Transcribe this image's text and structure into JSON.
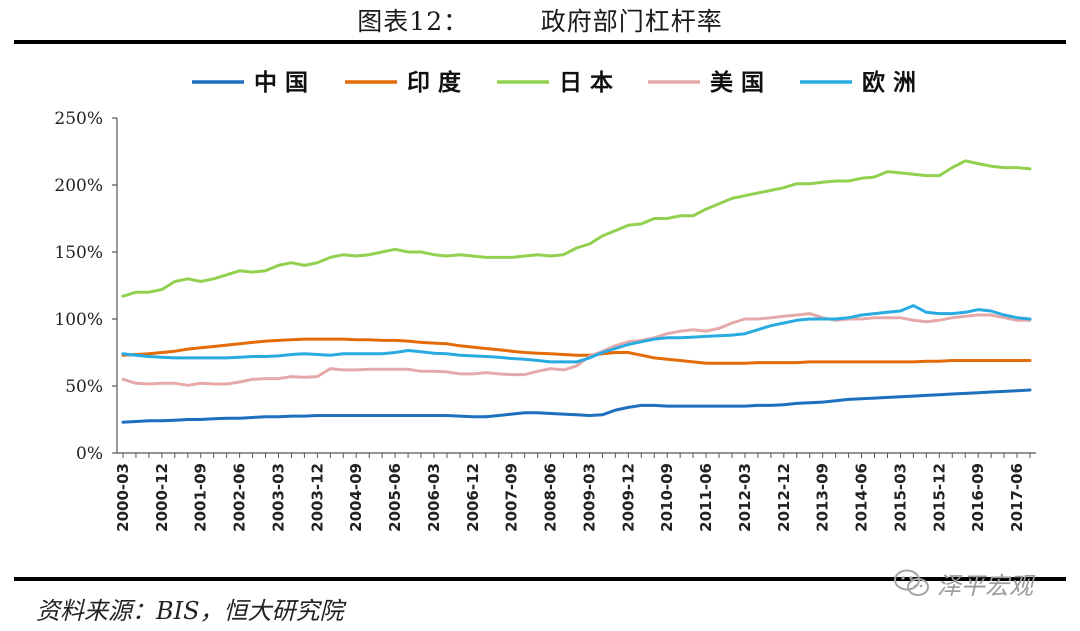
{
  "title_prefix": "图表12：",
  "title_text": "政府部门杠杆率",
  "source": "资料来源：BIS，恒大研究院",
  "watermark": {
    "text": "泽平宏观",
    "icon": "wechat-icon"
  },
  "chart_data": {
    "type": "line",
    "title": "政府部门杠杆率",
    "xlabel": "",
    "ylabel": "",
    "ylim": [
      0,
      250
    ],
    "yticks": [
      0,
      50,
      100,
      150,
      200,
      250
    ],
    "ytick_labels": [
      "0%",
      "50%",
      "100%",
      "150%",
      "200%",
      "250%"
    ],
    "legend_position": "top",
    "grid": false,
    "x_tick_labels": [
      "2000-03",
      "2000-12",
      "2001-09",
      "2002-06",
      "2003-03",
      "2003-12",
      "2004-09",
      "2005-06",
      "2006-03",
      "2006-12",
      "2007-09",
      "2008-06",
      "2009-03",
      "2009-12",
      "2010-09",
      "2011-06",
      "2012-03",
      "2012-12",
      "2013-09",
      "2014-06",
      "2015-03",
      "2015-12",
      "2016-09",
      "2017-06"
    ],
    "x": [
      "2000-03",
      "2000-06",
      "2000-09",
      "2000-12",
      "2001-03",
      "2001-06",
      "2001-09",
      "2001-12",
      "2002-03",
      "2002-06",
      "2002-09",
      "2002-12",
      "2003-03",
      "2003-06",
      "2003-09",
      "2003-12",
      "2004-03",
      "2004-06",
      "2004-09",
      "2004-12",
      "2005-03",
      "2005-06",
      "2005-09",
      "2005-12",
      "2006-03",
      "2006-06",
      "2006-09",
      "2006-12",
      "2007-03",
      "2007-06",
      "2007-09",
      "2007-12",
      "2008-03",
      "2008-06",
      "2008-09",
      "2008-12",
      "2009-03",
      "2009-06",
      "2009-09",
      "2009-12",
      "2010-03",
      "2010-06",
      "2010-09",
      "2010-12",
      "2011-03",
      "2011-06",
      "2011-09",
      "2011-12",
      "2012-03",
      "2012-06",
      "2012-09",
      "2012-12",
      "2013-03",
      "2013-06",
      "2013-09",
      "2013-12",
      "2014-03",
      "2014-06",
      "2014-09",
      "2014-12",
      "2015-03",
      "2015-06",
      "2015-09",
      "2015-12",
      "2016-03",
      "2016-06",
      "2016-09",
      "2016-12",
      "2017-03",
      "2017-06",
      "2017-09"
    ],
    "series": [
      {
        "name": "中国",
        "color": "#1f6fbf",
        "values": [
          23,
          23.5,
          24,
          24,
          24.5,
          25,
          25,
          25.5,
          26,
          26,
          26.5,
          27,
          27,
          27.5,
          27.5,
          28,
          28,
          28,
          28,
          28,
          28,
          28,
          28,
          28,
          28,
          28,
          27.5,
          27,
          27,
          28,
          29,
          30,
          30,
          29.5,
          29,
          28.5,
          28,
          28.5,
          32,
          34,
          35.5,
          35.5,
          35,
          35,
          35,
          35,
          35,
          35,
          35,
          35.5,
          35.5,
          36,
          37,
          37.5,
          38,
          39,
          40,
          40.5,
          41,
          41.5,
          42,
          42.5,
          43,
          43.5,
          44,
          44.5,
          45,
          45.5,
          46,
          46.5,
          47
        ]
      },
      {
        "name": "印度",
        "color": "#e36c09",
        "values": [
          73,
          73.5,
          74,
          75,
          76,
          77.5,
          78.5,
          79.5,
          80.5,
          81.5,
          82.5,
          83.5,
          84,
          84.5,
          85,
          85,
          85,
          85,
          84.5,
          84.5,
          84,
          84,
          83.5,
          82.5,
          82,
          81.5,
          80,
          79,
          78,
          77,
          76,
          75,
          74.5,
          74,
          73.5,
          73,
          73,
          74,
          75,
          75,
          73,
          71,
          70,
          69,
          68,
          67,
          67,
          67,
          67,
          67.5,
          67.5,
          67.5,
          67.5,
          68,
          68,
          68,
          68,
          68,
          68,
          68,
          68,
          68,
          68.5,
          68.5,
          69,
          69,
          69,
          69,
          69,
          69,
          69
        ]
      },
      {
        "name": "日本",
        "color": "#92d050",
        "values": [
          117,
          120,
          120,
          122,
          128,
          130,
          128,
          130,
          133,
          136,
          135,
          136,
          140,
          142,
          140,
          142,
          146,
          148,
          147,
          148,
          150,
          152,
          150,
          150,
          148,
          147,
          148,
          147,
          146,
          146,
          146,
          147,
          148,
          147,
          148,
          153,
          156,
          162,
          166,
          170,
          171,
          175,
          175,
          177,
          177,
          182,
          186,
          190,
          192,
          194,
          196,
          198,
          201,
          201,
          202,
          203,
          203,
          205,
          206,
          210,
          209,
          208,
          207,
          207,
          213,
          218,
          216,
          214,
          213,
          213,
          212
        ]
      },
      {
        "name": "美国",
        "color": "#e6a9a9",
        "values": [
          55,
          52,
          51.5,
          52,
          52,
          50.5,
          52,
          51.5,
          51.5,
          53,
          55,
          55.5,
          55.5,
          57,
          56.5,
          57,
          63,
          62,
          62,
          62.5,
          62.5,
          62.5,
          62.5,
          61,
          61,
          60.5,
          59,
          59,
          60,
          59,
          58.5,
          58.5,
          61,
          63,
          62,
          65,
          72,
          76,
          80,
          83,
          84,
          86,
          89,
          91,
          92,
          91,
          93,
          97,
          100,
          100,
          101,
          102,
          103,
          104,
          101,
          99,
          100,
          100,
          101,
          101,
          101,
          99,
          98,
          99,
          101,
          102,
          103,
          103,
          101,
          99,
          99
        ]
      },
      {
        "name": "欧洲",
        "color": "#29abe2",
        "values": [
          74,
          73,
          72,
          71.5,
          71,
          71,
          71,
          71,
          71,
          71.5,
          72,
          72,
          72.5,
          73.5,
          74,
          73.5,
          73,
          74,
          74,
          74,
          74,
          75,
          76.5,
          75.5,
          74.5,
          74,
          73,
          72.5,
          72,
          71.5,
          70.5,
          70,
          69,
          68,
          68,
          68,
          71,
          75,
          78,
          81,
          83,
          85,
          86,
          86,
          86.5,
          87,
          87.5,
          88,
          89,
          92,
          95,
          97,
          99,
          100,
          100,
          100,
          101,
          103,
          104,
          105,
          106,
          110,
          105,
          104,
          104,
          105,
          107,
          106,
          103,
          101,
          100
        ]
      }
    ]
  }
}
